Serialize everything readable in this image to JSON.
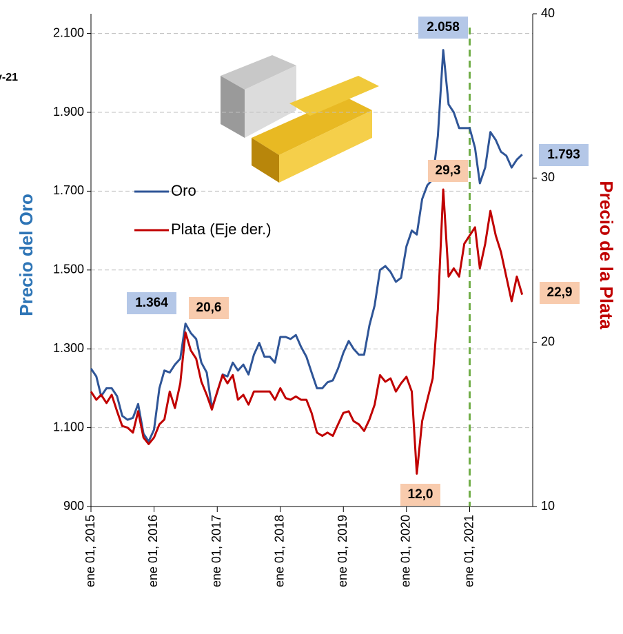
{
  "chart_data": {
    "type": "line",
    "note_text": "v-21",
    "y_label": "Precio del Oro",
    "y2_label": "Precio de la Plata",
    "x": [
      "2015-01-01",
      "2015-02-01",
      "2015-03-01",
      "2015-04-01",
      "2015-05-01",
      "2015-06-01",
      "2015-07-01",
      "2015-08-01",
      "2015-09-01",
      "2015-10-01",
      "2015-11-01",
      "2015-12-01",
      "2016-01-01",
      "2016-02-01",
      "2016-03-01",
      "2016-04-01",
      "2016-05-01",
      "2016-06-01",
      "2016-07-01",
      "2016-08-01",
      "2016-09-01",
      "2016-10-01",
      "2016-11-01",
      "2016-12-01",
      "2017-01-01",
      "2017-02-01",
      "2017-03-01",
      "2017-04-01",
      "2017-05-01",
      "2017-06-01",
      "2017-07-01",
      "2017-08-01",
      "2017-09-01",
      "2017-10-01",
      "2017-11-01",
      "2017-12-01",
      "2018-01-01",
      "2018-02-01",
      "2018-03-01",
      "2018-04-01",
      "2018-05-01",
      "2018-06-01",
      "2018-07-01",
      "2018-08-01",
      "2018-09-01",
      "2018-10-01",
      "2018-11-01",
      "2018-12-01",
      "2019-01-01",
      "2019-02-01",
      "2019-03-01",
      "2019-04-01",
      "2019-05-01",
      "2019-06-01",
      "2019-07-01",
      "2019-08-01",
      "2019-09-01",
      "2019-10-01",
      "2019-11-01",
      "2019-12-01",
      "2020-01-01",
      "2020-02-01",
      "2020-03-01",
      "2020-04-01",
      "2020-05-01",
      "2020-06-01",
      "2020-07-01",
      "2020-08-01",
      "2020-09-01",
      "2020-10-01",
      "2020-11-01",
      "2020-12-01",
      "2021-01-01",
      "2021-02-01",
      "2021-03-01",
      "2021-04-01",
      "2021-05-01",
      "2021-06-01",
      "2021-07-01",
      "2021-08-01",
      "2021-09-01",
      "2021-10-01",
      "2021-11-01"
    ],
    "series": [
      {
        "name": "Oro",
        "color": "#2f5597",
        "axis": "y",
        "values": [
          1250,
          1230,
          1180,
          1200,
          1200,
          1180,
          1130,
          1120,
          1125,
          1160,
          1085,
          1065,
          1095,
          1200,
          1245,
          1240,
          1260,
          1275,
          1364,
          1340,
          1325,
          1265,
          1240,
          1150,
          1190,
          1235,
          1230,
          1265,
          1245,
          1260,
          1235,
          1285,
          1315,
          1280,
          1280,
          1265,
          1330,
          1330,
          1325,
          1335,
          1305,
          1280,
          1240,
          1200,
          1200,
          1215,
          1220,
          1250,
          1290,
          1320,
          1300,
          1285,
          1285,
          1360,
          1410,
          1500,
          1510,
          1495,
          1470,
          1480,
          1560,
          1600,
          1590,
          1680,
          1715,
          1730,
          1840,
          2058,
          1920,
          1900,
          1860,
          1860,
          1860,
          1810,
          1720,
          1760,
          1850,
          1830,
          1800,
          1790,
          1760,
          1780,
          1793
        ]
      },
      {
        "name": "Plata (Eje der.)",
        "color": "#c00000",
        "axis": "y2",
        "values": [
          17,
          16.5,
          16.8,
          16.3,
          16.8,
          15.8,
          14.9,
          14.8,
          14.5,
          15.8,
          14.2,
          13.8,
          14.2,
          15,
          15.3,
          17,
          16,
          17.5,
          20.6,
          19.5,
          19,
          17.6,
          16.8,
          15.9,
          17,
          18,
          17.5,
          18,
          16.5,
          16.8,
          16.2,
          17,
          17,
          17,
          17,
          16.5,
          17.2,
          16.6,
          16.5,
          16.7,
          16.5,
          16.5,
          15.7,
          14.5,
          14.3,
          14.5,
          14.3,
          15,
          15.7,
          15.8,
          15.2,
          15,
          14.6,
          15.3,
          16.2,
          18,
          17.6,
          17.8,
          17,
          17.5,
          17.9,
          17,
          12,
          15.2,
          16.5,
          17.8,
          22,
          29.3,
          24,
          24.5,
          24,
          26,
          26.5,
          27,
          24.5,
          26,
          28,
          26.5,
          25.5,
          24,
          22.5,
          24,
          22.9
        ]
      }
    ],
    "annotations": [
      {
        "x": "2020-08-01",
        "value": 2058,
        "label": "2.058",
        "axis": "y"
      },
      {
        "x": "2016-07-01",
        "value": 1364,
        "label": "1.364",
        "axis": "y"
      },
      {
        "x": "2016-07-01",
        "value": 20.6,
        "label": "20,6",
        "axis": "y2"
      },
      {
        "x": "2020-08-01",
        "value": 29.3,
        "label": "29,3",
        "axis": "y2"
      },
      {
        "x": "2020-03-01",
        "value": 12.0,
        "label": "12,0",
        "axis": "y2"
      },
      {
        "x": "2021-11-01",
        "value": 1793,
        "label": "1.793",
        "axis": "y"
      },
      {
        "x": "2021-11-01",
        "value": 22.9,
        "label": "22,9",
        "axis": "y2"
      }
    ],
    "vline": {
      "x": "2021-01-01",
      "color": "#70ad47"
    },
    "xlim": [
      "2015-01-01",
      "2022-01-01"
    ],
    "xticks": [
      {
        "value": "2015-01-01",
        "label": "ene 01, 2015"
      },
      {
        "value": "2016-01-01",
        "label": "ene 01, 2016"
      },
      {
        "value": "2017-01-01",
        "label": "ene 01, 2017"
      },
      {
        "value": "2018-01-01",
        "label": "ene 01, 2018"
      },
      {
        "value": "2019-01-01",
        "label": "ene 01, 2019"
      },
      {
        "value": "2020-01-01",
        "label": "ene 01, 2020"
      },
      {
        "value": "2021-01-01",
        "label": "ene 01, 2021"
      }
    ],
    "ylim": [
      900,
      2150
    ],
    "yticks": [
      900,
      {
        "value": 1100,
        "label": "1.100"
      },
      {
        "value": 1300,
        "label": "1.300"
      },
      {
        "value": 1500,
        "label": "1.500"
      },
      {
        "value": 1700,
        "label": "1.700"
      },
      {
        "value": 1900,
        "label": "1.900"
      },
      {
        "value": 2100,
        "label": "2.100"
      }
    ],
    "y2lim": [
      10,
      40
    ],
    "y2ticks": [
      10,
      20,
      30,
      40
    ],
    "grid": true
  }
}
